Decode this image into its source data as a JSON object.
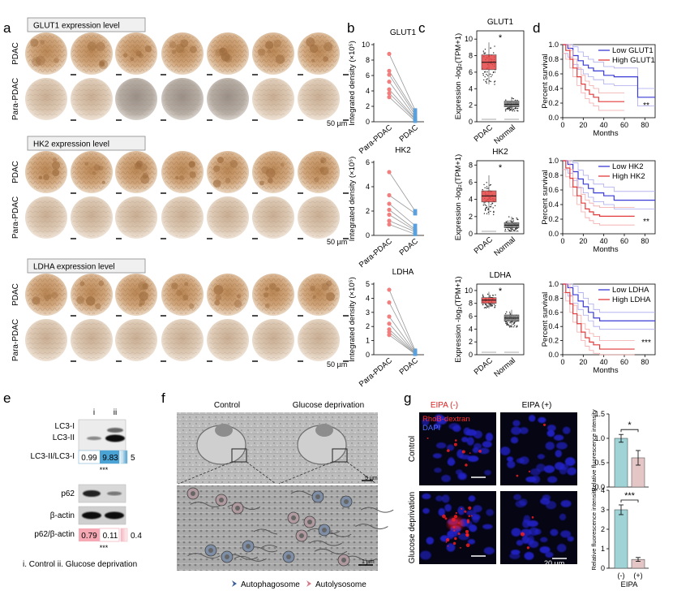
{
  "panel_letters": [
    "a",
    "b",
    "c",
    "d",
    "e",
    "f",
    "g"
  ],
  "panel_a": {
    "headers": [
      "GLUT1 expression level",
      "HK2 expression level",
      "LDHA expression level"
    ],
    "row_labels": [
      "PDAC",
      "Para-PDAC"
    ],
    "scale_bar": "50 µm",
    "tissue_colors": {
      "pdac": "#c9986a",
      "para": "#d7c3ae"
    }
  },
  "panel_b": {
    "charts": [
      {
        "title": "GLUT1",
        "ylabel": "Integrated density (×10⁵)",
        "ylim": [
          0,
          10
        ],
        "yticks": [
          "0",
          "2",
          "4",
          "6",
          "8",
          "10"
        ],
        "xticks": [
          "Para-PDAC",
          "PDAC"
        ]
      },
      {
        "title": "HK2",
        "ylabel": "Integrated density (×10⁵)",
        "ylim": [
          0,
          6
        ],
        "yticks": [
          "0",
          "2",
          "4",
          "6"
        ],
        "xticks": [
          "Para-PDAC",
          "PDAC"
        ]
      },
      {
        "title": "LDHA",
        "ylabel": "Integrated density (×10⁵)",
        "ylim": [
          0,
          5
        ],
        "yticks": [
          "0",
          "1",
          "2",
          "3",
          "4",
          "5"
        ],
        "xticks": [
          "Para-PDAC",
          "PDAC"
        ]
      }
    ]
  },
  "panel_c": {
    "charts": [
      {
        "title": "GLUT1",
        "ylabel": "Expression -log₂(TPM+1)",
        "yticks": [
          "0",
          "2",
          "4",
          "6",
          "8",
          "10"
        ],
        "xticks": [
          "PDAC",
          "Normal"
        ],
        "sig": "*"
      },
      {
        "title": "HK2",
        "ylabel": "Expression -log₂(TPM+1)",
        "yticks": [
          "0",
          "2",
          "4",
          "6",
          "8"
        ],
        "xticks": [
          "PDAC",
          "Normal"
        ],
        "sig": "*"
      },
      {
        "title": "LDHA",
        "ylabel": "Expression -log₂(TPM+1)",
        "yticks": [
          "0",
          "2",
          "4",
          "6",
          "8",
          "10"
        ],
        "xticks": [
          "PDAC",
          "Normal"
        ],
        "sig": "*"
      }
    ]
  },
  "panel_d": {
    "ylabel": "Percent survival",
    "xlabel": "Months",
    "yticks": [
      "0.0",
      "0.2",
      "0.4",
      "0.6",
      "0.8",
      "1.0"
    ],
    "xticks": [
      "0",
      "20",
      "40",
      "60",
      "80"
    ],
    "charts": [
      {
        "legend_low": "Low GLUT1",
        "legend_high": "High GLUT1",
        "sig": "**"
      },
      {
        "legend_low": "Low HK2",
        "legend_high": "High HK2",
        "sig": "**"
      },
      {
        "legend_low": "Low LDHA",
        "legend_high": "High LDHA",
        "sig": "***"
      }
    ]
  },
  "panel_e": {
    "lanes": [
      "i",
      "ii"
    ],
    "bands": [
      "LC3-I",
      "LC3-II",
      "p62",
      "β-actin"
    ],
    "ratio1_label": "LC3-II/LC3-I",
    "ratio1_values": [
      "0.99",
      "9.83"
    ],
    "ratio1_scale": "5",
    "ratio2_label": "p62/β-actin",
    "ratio2_values": [
      "0.79",
      "0.11"
    ],
    "ratio2_scale": "0.4",
    "sig": "***",
    "legend": "i. Control   ii. Glucose deprivation"
  },
  "panel_f": {
    "titles": [
      "Control",
      "Glucose deprivation"
    ],
    "scale_top": "5 µm",
    "scale_bottom": "1 µm",
    "legend_auto": "Autophagosome",
    "legend_autoly": "Autolysosome"
  },
  "panel_g": {
    "col_titles": [
      "EIPA (-)",
      "EIPA (+)"
    ],
    "stain_label_1": "RhoB-dextran",
    "stain_label_2": "DAPI",
    "row_labels": [
      "Control",
      "Glucose deprivation"
    ],
    "scale_bar": "20 µm",
    "bar_ylabel": "Relative fluorescence intensity",
    "bar_top": {
      "yticks": [
        "0.0",
        "0.5",
        "1.0",
        "1.5"
      ],
      "sig": "*"
    },
    "bar_bottom": {
      "yticks": [
        "0",
        "1",
        "2",
        "3",
        "4"
      ],
      "sig": "***"
    },
    "xticks": [
      "(-)",
      "(+)"
    ],
    "xlabel": "EIPA"
  },
  "chart_data": [
    {
      "type": "line",
      "title": "GLUT1",
      "xlabel": "",
      "ylabel": "Integrated density (×10⁵)",
      "ylim": [
        0,
        10
      ],
      "categories": [
        "Para-PDAC",
        "PDAC"
      ],
      "pairs": [
        [
          8.8,
          1.5
        ],
        [
          6.6,
          1.2
        ],
        [
          6.1,
          0.9
        ],
        [
          5.2,
          0.6
        ],
        [
          4.2,
          0.4
        ],
        [
          3.7,
          0.3
        ],
        [
          3.2,
          0.1
        ]
      ]
    },
    {
      "type": "line",
      "title": "HK2",
      "xlabel": "",
      "ylabel": "Integrated density (×10⁵)",
      "ylim": [
        0,
        6
      ],
      "categories": [
        "Para-PDAC",
        "PDAC"
      ],
      "pairs": [
        [
          5.2,
          2.0
        ],
        [
          3.3,
          1.8
        ],
        [
          2.6,
          0.8
        ],
        [
          2.1,
          0.5
        ],
        [
          1.7,
          0.4
        ],
        [
          1.2,
          0.3
        ],
        [
          0.9,
          0.1
        ]
      ]
    },
    {
      "type": "line",
      "title": "LDHA",
      "xlabel": "",
      "ylabel": "Integrated density (×10⁵)",
      "ylim": [
        0,
        5
      ],
      "categories": [
        "Para-PDAC",
        "PDAC"
      ],
      "pairs": [
        [
          4.6,
          0.3
        ],
        [
          3.7,
          0.2
        ],
        [
          2.7,
          0.15
        ],
        [
          2.2,
          0.1
        ],
        [
          1.8,
          0.1
        ],
        [
          1.6,
          0.05
        ],
        [
          1.4,
          0.05
        ]
      ]
    },
    {
      "type": "box",
      "title": "GLUT1",
      "ylabel": "Expression -log₂(TPM+1)",
      "categories": [
        "PDAC",
        "Normal"
      ],
      "boxes": [
        {
          "q1": 6.3,
          "median": 7.2,
          "q3": 8.1,
          "lo": 4.5,
          "hi": 9.6
        },
        {
          "q1": 1.8,
          "median": 2.1,
          "q3": 2.5,
          "lo": 1.3,
          "hi": 3.0
        }
      ]
    },
    {
      "type": "box",
      "title": "HK2",
      "ylabel": "Expression -log₂(TPM+1)",
      "categories": [
        "PDAC",
        "Normal"
      ],
      "boxes": [
        {
          "q1": 3.7,
          "median": 4.4,
          "q3": 5.0,
          "lo": 2.2,
          "hi": 6.8
        },
        {
          "q1": 0.7,
          "median": 1.0,
          "q3": 1.3,
          "lo": 0.3,
          "hi": 2.0
        }
      ]
    },
    {
      "type": "box",
      "title": "LDHA",
      "ylabel": "Expression -log₂(TPM+1)",
      "categories": [
        "PDAC",
        "Normal"
      ],
      "boxes": [
        {
          "q1": 8.0,
          "median": 8.5,
          "q3": 8.9,
          "lo": 7.2,
          "hi": 9.8
        },
        {
          "q1": 5.2,
          "median": 5.7,
          "q3": 6.2,
          "lo": 4.3,
          "hi": 7.0
        }
      ]
    },
    {
      "type": "line",
      "title": "",
      "xlabel": "Months",
      "ylabel": "Percent survival",
      "xlim": [
        0,
        90
      ],
      "ylim": [
        0,
        1
      ],
      "series": [
        {
          "name": "Low GLUT1",
          "points": [
            [
              0,
              1
            ],
            [
              5,
              0.95
            ],
            [
              10,
              0.85
            ],
            [
              15,
              0.78
            ],
            [
              20,
              0.72
            ],
            [
              25,
              0.68
            ],
            [
              30,
              0.64
            ],
            [
              40,
              0.58
            ],
            [
              50,
              0.56
            ],
            [
              73,
              0.56
            ],
            [
              73,
              0.28
            ],
            [
              90,
              0.28
            ]
          ]
        },
        {
          "name": "High GLUT1",
          "points": [
            [
              0,
              1
            ],
            [
              3,
              0.92
            ],
            [
              7,
              0.8
            ],
            [
              10,
              0.68
            ],
            [
              14,
              0.56
            ],
            [
              18,
              0.46
            ],
            [
              22,
              0.38
            ],
            [
              26,
              0.32
            ],
            [
              30,
              0.28
            ],
            [
              35,
              0.22
            ],
            [
              60,
              0.22
            ]
          ]
        }
      ]
    },
    {
      "type": "line",
      "title": "",
      "xlabel": "Months",
      "ylabel": "Percent survival",
      "xlim": [
        0,
        90
      ],
      "ylim": [
        0,
        1
      ],
      "series": [
        {
          "name": "Low HK2",
          "points": [
            [
              0,
              1
            ],
            [
              5,
              0.95
            ],
            [
              10,
              0.85
            ],
            [
              15,
              0.75
            ],
            [
              20,
              0.68
            ],
            [
              25,
              0.62
            ],
            [
              30,
              0.56
            ],
            [
              40,
              0.52
            ],
            [
              50,
              0.46
            ],
            [
              90,
              0.46
            ]
          ]
        },
        {
          "name": "High HK2",
          "points": [
            [
              0,
              1
            ],
            [
              3,
              0.9
            ],
            [
              7,
              0.76
            ],
            [
              10,
              0.64
            ],
            [
              14,
              0.52
            ],
            [
              18,
              0.42
            ],
            [
              22,
              0.34
            ],
            [
              26,
              0.3
            ],
            [
              30,
              0.26
            ],
            [
              36,
              0.24
            ],
            [
              70,
              0.24
            ]
          ]
        }
      ]
    },
    {
      "type": "line",
      "title": "",
      "xlabel": "Months",
      "ylabel": "Percent survival",
      "xlim": [
        0,
        90
      ],
      "ylim": [
        0,
        1
      ],
      "series": [
        {
          "name": "Low LDHA",
          "points": [
            [
              0,
              1
            ],
            [
              5,
              0.95
            ],
            [
              10,
              0.85
            ],
            [
              15,
              0.76
            ],
            [
              20,
              0.68
            ],
            [
              25,
              0.6
            ],
            [
              30,
              0.52
            ],
            [
              36,
              0.48
            ],
            [
              90,
              0.48
            ]
          ]
        },
        {
          "name": "High LDHA",
          "points": [
            [
              0,
              1
            ],
            [
              3,
              0.88
            ],
            [
              7,
              0.72
            ],
            [
              10,
              0.58
            ],
            [
              14,
              0.44
            ],
            [
              18,
              0.32
            ],
            [
              22,
              0.24
            ],
            [
              26,
              0.18
            ],
            [
              30,
              0.14
            ],
            [
              36,
              0.08
            ],
            [
              70,
              0.08
            ]
          ]
        }
      ]
    },
    {
      "type": "bar",
      "title": "",
      "ylabel": "Relative fluorescence intensity",
      "xlabel": "EIPA",
      "categories": [
        "(-)",
        "(+)"
      ],
      "values": [
        1.0,
        0.6
      ],
      "errors": [
        0.08,
        0.15
      ],
      "ylim": [
        0,
        1.5
      ]
    },
    {
      "type": "bar",
      "title": "",
      "ylabel": "Relative fluorescence intensity",
      "xlabel": "EIPA",
      "categories": [
        "(-)",
        "(+)"
      ],
      "values": [
        3.0,
        0.45
      ],
      "errors": [
        0.25,
        0.1
      ],
      "ylim": [
        0,
        4
      ]
    }
  ]
}
